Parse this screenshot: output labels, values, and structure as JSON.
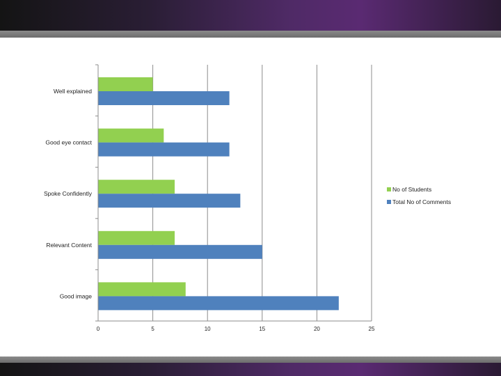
{
  "chart_data": {
    "type": "bar",
    "orientation": "horizontal",
    "categories": [
      "Well explained",
      "Good eye contact",
      "Spoke Confidently",
      "Relevant Content",
      "Good image"
    ],
    "series": [
      {
        "name": "No of Students",
        "color": "#92d050",
        "values": [
          5,
          6,
          7,
          7,
          8
        ]
      },
      {
        "name": "Total No of Comments",
        "color": "#4f81bd",
        "values": [
          12,
          12,
          13,
          15,
          22
        ]
      }
    ],
    "xlim": [
      0,
      25
    ],
    "xticks": [
      0,
      5,
      10,
      15,
      20,
      25
    ],
    "grid": true,
    "legend_position": "right"
  }
}
